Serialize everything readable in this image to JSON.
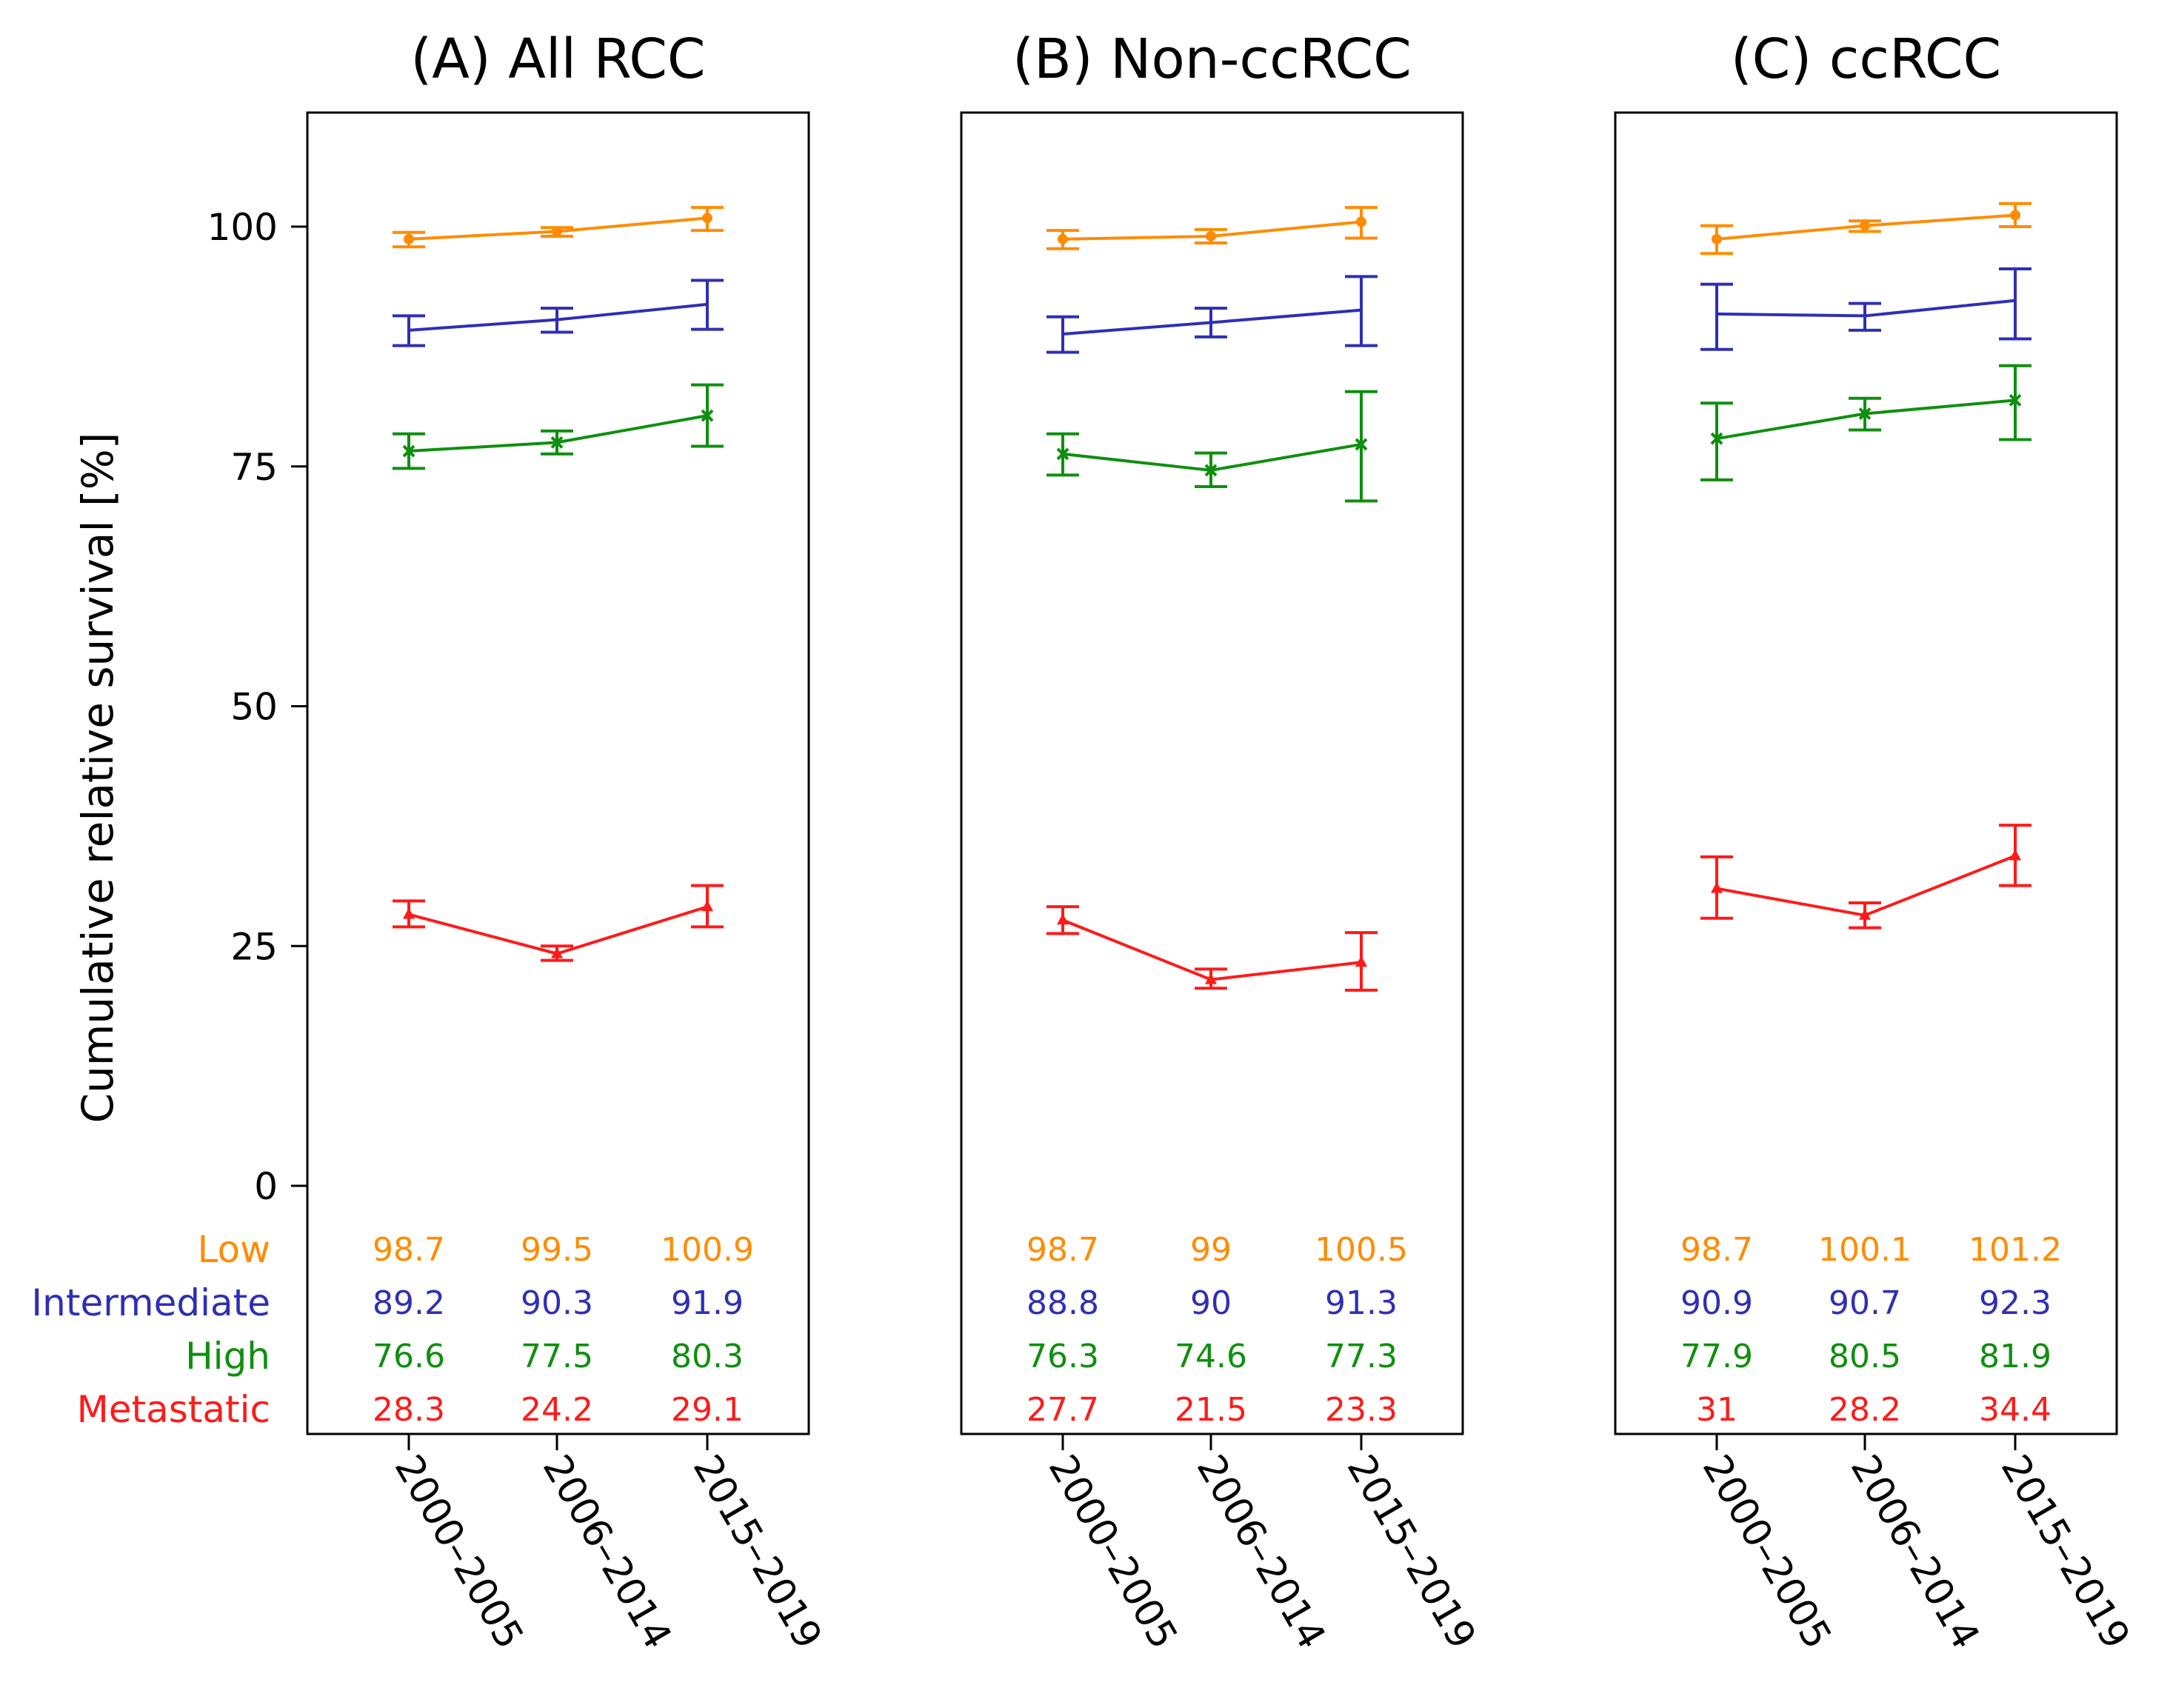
{
  "y_axis_label": "Cumulative relative survival [%]",
  "colors": {
    "Low": "#ff8c00",
    "Intermediate": "#2f2fb4",
    "High": "#0f8f0f",
    "Metastatic": "#ff1a1a",
    "axis": "#000000"
  },
  "chart_data": [
    {
      "type": "line",
      "title": "(A) All RCC",
      "ylabel": "Cumulative relative survival [%]",
      "ylim": [
        -25,
        112
      ],
      "yticks": [
        0,
        25,
        50,
        75,
        100
      ],
      "categories": [
        "2000–2005",
        "2006–2014",
        "2015–2019"
      ],
      "series": [
        {
          "name": "Low",
          "marker": "circle",
          "values": [
            98.7,
            99.5,
            100.9
          ],
          "ci_low": [
            97.9,
            99.0,
            99.6
          ],
          "ci_high": [
            99.4,
            99.9,
            102.0
          ],
          "labels": [
            "98.7",
            "99.5",
            "100.9"
          ]
        },
        {
          "name": "Intermediate",
          "marker": "none",
          "values": [
            89.2,
            90.3,
            91.9
          ],
          "ci_low": [
            87.6,
            89.0,
            89.3
          ],
          "ci_high": [
            90.7,
            91.5,
            94.4
          ],
          "labels": [
            "89.2",
            "90.3",
            "91.9"
          ]
        },
        {
          "name": "High",
          "marker": "x",
          "values": [
            76.6,
            77.5,
            80.3
          ],
          "ci_low": [
            74.8,
            76.3,
            77.1
          ],
          "ci_high": [
            78.4,
            78.7,
            83.5
          ],
          "labels": [
            "76.6",
            "77.5",
            "80.3"
          ]
        },
        {
          "name": "Metastatic",
          "marker": "triangle",
          "values": [
            28.3,
            24.2,
            29.1
          ],
          "ci_low": [
            27.0,
            23.5,
            27.0
          ],
          "ci_high": [
            29.7,
            25.0,
            31.3
          ],
          "labels": [
            "28.3",
            "24.2",
            "29.1"
          ]
        }
      ]
    },
    {
      "type": "line",
      "title": "(B) Non-ccRCC",
      "ylim": [
        -25,
        112
      ],
      "yticks": [
        0,
        25,
        50,
        75,
        100
      ],
      "categories": [
        "2000–2005",
        "2006–2014",
        "2015–2019"
      ],
      "series": [
        {
          "name": "Low",
          "marker": "circle",
          "values": [
            98.7,
            99.0,
            100.5
          ],
          "ci_low": [
            97.7,
            98.3,
            98.8
          ],
          "ci_high": [
            99.6,
            99.7,
            102.0
          ],
          "labels": [
            "98.7",
            "99",
            "100.5"
          ]
        },
        {
          "name": "Intermediate",
          "marker": "none",
          "values": [
            88.8,
            90.0,
            91.3
          ],
          "ci_low": [
            86.9,
            88.5,
            87.6
          ],
          "ci_high": [
            90.6,
            91.5,
            94.8
          ],
          "labels": [
            "88.8",
            "90",
            "91.3"
          ]
        },
        {
          "name": "High",
          "marker": "x",
          "values": [
            76.3,
            74.6,
            77.3
          ],
          "ci_low": [
            74.1,
            72.9,
            71.4
          ],
          "ci_high": [
            78.4,
            76.4,
            82.8
          ],
          "labels": [
            "76.3",
            "74.6",
            "77.3"
          ]
        },
        {
          "name": "Metastatic",
          "marker": "triangle",
          "values": [
            27.7,
            21.5,
            23.3
          ],
          "ci_low": [
            26.3,
            20.6,
            20.4
          ],
          "ci_high": [
            29.1,
            22.6,
            26.4
          ],
          "labels": [
            "27.7",
            "21.5",
            "23.3"
          ]
        }
      ]
    },
    {
      "type": "line",
      "title": "(C) ccRCC",
      "ylim": [
        -25,
        112
      ],
      "yticks": [
        0,
        25,
        50,
        75,
        100
      ],
      "categories": [
        "2000–2005",
        "2006–2014",
        "2015–2019"
      ],
      "series": [
        {
          "name": "Low",
          "marker": "circle",
          "values": [
            98.7,
            100.1,
            101.2
          ],
          "ci_low": [
            97.2,
            99.5,
            100.0
          ],
          "ci_high": [
            100.1,
            100.6,
            102.4
          ],
          "labels": [
            "98.7",
            "100.1",
            "101.2"
          ]
        },
        {
          "name": "Intermediate",
          "marker": "none",
          "values": [
            90.9,
            90.7,
            92.3
          ],
          "ci_low": [
            87.2,
            89.2,
            88.3
          ],
          "ci_high": [
            94.0,
            92.0,
            95.6
          ],
          "labels": [
            "90.9",
            "90.7",
            "92.3"
          ]
        },
        {
          "name": "High",
          "marker": "x",
          "values": [
            77.9,
            80.5,
            81.9
          ],
          "ci_low": [
            73.6,
            78.8,
            77.8
          ],
          "ci_high": [
            81.6,
            82.1,
            85.5
          ],
          "labels": [
            "77.9",
            "80.5",
            "81.9"
          ]
        },
        {
          "name": "Metastatic",
          "marker": "triangle",
          "values": [
            31.0,
            28.2,
            34.4
          ],
          "ci_low": [
            27.9,
            26.9,
            31.3
          ],
          "ci_high": [
            34.3,
            29.5,
            37.6
          ],
          "labels": [
            "31",
            "28.2",
            "34.4"
          ]
        }
      ]
    }
  ]
}
